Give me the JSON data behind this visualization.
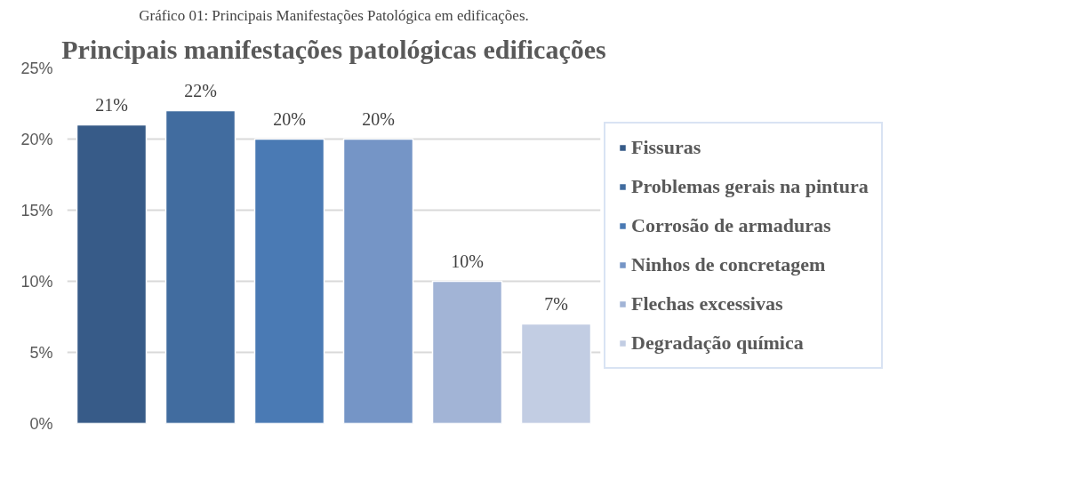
{
  "chart_data": {
    "type": "bar",
    "title": "Principais manifestações patológicas edificações",
    "annotations": [
      "Gráfico 01: Principais Manifestações Patológica em edificações."
    ],
    "categories": [
      null,
      null,
      null,
      null,
      null,
      null
    ],
    "series": [
      {
        "name": "Fissuras",
        "color": "#375b88",
        "values": [
          21,
          null,
          null,
          null,
          null,
          null
        ],
        "value_labels": [
          "21%",
          null,
          null,
          null,
          null,
          null
        ]
      },
      {
        "name": "Problemas gerais na pintura",
        "color": "#416c9f",
        "values": [
          null,
          22,
          null,
          null,
          null,
          null
        ],
        "value_labels": [
          null,
          "22%",
          null,
          null,
          null,
          null
        ]
      },
      {
        "name": "Corrosão de armaduras",
        "color": "#4a7ab4",
        "values": [
          null,
          null,
          20,
          null,
          null,
          null
        ],
        "value_labels": [
          null,
          null,
          "20%",
          null,
          null,
          null
        ]
      },
      {
        "name": "Ninhos de concretagem",
        "color": "#7595c6",
        "values": [
          null,
          null,
          null,
          20,
          null,
          null
        ],
        "value_labels": [
          null,
          null,
          null,
          "20%",
          null,
          null
        ]
      },
      {
        "name": "Flechas excessivas",
        "color": "#a2b4d6",
        "values": [
          null,
          null,
          null,
          null,
          10,
          null
        ],
        "value_labels": [
          null,
          null,
          null,
          null,
          "10%",
          null
        ]
      },
      {
        "name": "Degradação química",
        "color": "#c2cde3",
        "values": [
          null,
          null,
          null,
          null,
          null,
          7
        ],
        "value_labels": [
          null,
          null,
          null,
          null,
          null,
          "7%"
        ]
      }
    ],
    "ylim": [
      0,
      25
    ],
    "yticks": [
      {
        "value": 0,
        "label": "0%"
      },
      {
        "value": 5,
        "label": "5%"
      },
      {
        "value": 10,
        "label": "10%"
      },
      {
        "value": 15,
        "label": "15%"
      },
      {
        "value": 20,
        "label": "20%"
      },
      {
        "value": 25,
        "label": "25%"
      }
    ],
    "grid": "y",
    "legend": "right"
  }
}
